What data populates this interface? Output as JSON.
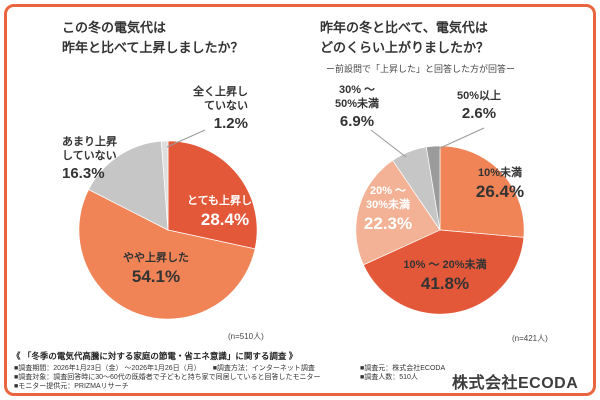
{
  "colors": {
    "frame": "#e9653c",
    "leader_line": "#999999",
    "text": "#333333"
  },
  "chart_data": [
    {
      "type": "pie",
      "title_lines": [
        "この冬の電気代は",
        "昨年と比べて上昇しましたか？"
      ],
      "n_label": "(n=510人)",
      "legend_position": "on-slices",
      "segments": [
        {
          "label_lines": [
            "とても上昇した"
          ],
          "value": 28.4,
          "value_label": "28.4%",
          "color": "#e4583a",
          "text_color": "#ffffff"
        },
        {
          "label_lines": [
            "やや上昇した"
          ],
          "value": 54.1,
          "value_label": "54.1%",
          "color": "#f08457",
          "text_color": "#333333"
        },
        {
          "label_lines": [
            "あまり上昇",
            "していない"
          ],
          "value": 16.3,
          "value_label": "16.3%",
          "color": "#c6c6c6",
          "text_color": "#333333"
        },
        {
          "label_lines": [
            "全く上昇し",
            "ていない"
          ],
          "value": 1.2,
          "value_label": "1.2%",
          "color": "#dedede",
          "text_color": "#333333"
        }
      ]
    },
    {
      "type": "pie",
      "title_lines": [
        "昨年の冬と比べて、電気代は",
        "どのくらい上がりましたか？"
      ],
      "subtitle": "ー前設問で「上昇した」と回答した方が回答ー",
      "n_label": "(n=421人)",
      "legend_position": "on-slices",
      "segments": [
        {
          "label_lines": [
            "10%未満"
          ],
          "value": 26.4,
          "value_label": "26.4%",
          "color": "#f08457",
          "text_color": "#333333"
        },
        {
          "label_lines": [
            "10% ～ 20%未満"
          ],
          "value": 41.8,
          "value_label": "41.8%",
          "color": "#e4583a",
          "text_color": "#333333"
        },
        {
          "label_lines": [
            "20% ～",
            "30%未満"
          ],
          "value": 22.3,
          "value_label": "22.3%",
          "color": "#f3b295",
          "text_color": "#ffffff"
        },
        {
          "label_lines": [
            "30% ～",
            "50%未満"
          ],
          "value": 6.9,
          "value_label": "6.9%",
          "color": "#c6c6c6",
          "text_color": "#333333"
        },
        {
          "label_lines": [
            "50%以上"
          ],
          "value": 2.6,
          "value_label": "2.6%",
          "color": "#9b9b9b",
          "text_color": "#333333"
        }
      ]
    }
  ],
  "footer": {
    "survey_title": "《 「冬季の電気代高騰に対する家庭の節電・省エネ意識」に関する調査 》",
    "row1_a": "■調査期間：2026年1月23日（金） ～2026年1月26日（月）",
    "row1_b": "■調査方法：インターネット調査",
    "row2": "■調査対象：調査回答時に30～60代の既婚者で子どもと持ち家で同居していると回答したモニター",
    "row3": "■モニター提供元：PRIZMAリサーチ",
    "right1": "■調査元：株式会社ECODA",
    "right2": "■調査人数：510人",
    "logo": "株式会社ECODA"
  }
}
